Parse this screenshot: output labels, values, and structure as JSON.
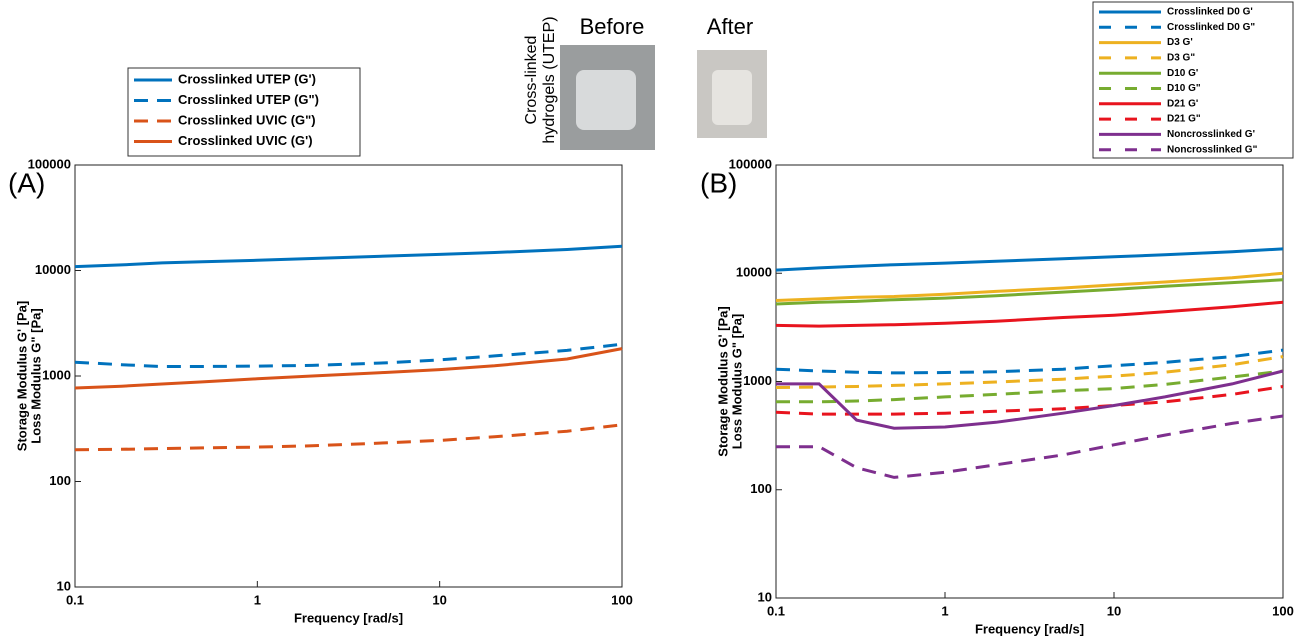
{
  "inset": {
    "label": [
      "Cross-linked",
      "hydrogels (UTEP)"
    ],
    "before": "Before",
    "after": "After"
  },
  "chart_data": [
    {
      "type": "line",
      "panel_label": "(A)",
      "xlabel": "Frequency [rad/s]",
      "ylabel": [
        "Storage Modulus G' [Pa]",
        "Loss Modulus G\" [Pa]"
      ],
      "log_x": true,
      "log_y": true,
      "x": [
        0.1,
        0.18,
        0.3,
        0.5,
        1,
        2,
        5,
        10,
        20,
        50,
        100
      ],
      "xlim": [
        0.1,
        100
      ],
      "xticks": [
        0.1,
        1,
        10,
        100
      ],
      "ylim": [
        10,
        100000
      ],
      "yticks": [
        10,
        100,
        1000,
        10000,
        100000
      ],
      "series": [
        {
          "name": "Crosslinked UTEP (G')",
          "color": "#0072bd",
          "dashed": false,
          "values": [
            10900,
            11300,
            11800,
            12100,
            12500,
            13000,
            13700,
            14200,
            14800,
            15800,
            17000
          ]
        },
        {
          "name": "Crosslinked UTEP (G\")",
          "color": "#0072bd",
          "dashed": true,
          "values": [
            1350,
            1280,
            1230,
            1230,
            1240,
            1260,
            1330,
            1420,
            1550,
            1750,
            2000
          ]
        },
        {
          "name": "Crosslinked UVIC (G\")",
          "color": "#d95319",
          "dashed": true,
          "values": [
            200,
            202,
            205,
            208,
            212,
            218,
            232,
            245,
            265,
            300,
            345
          ]
        },
        {
          "name": "Crosslinked UVIC (G')",
          "color": "#d95319",
          "dashed": false,
          "values": [
            770,
            800,
            840,
            880,
            940,
            1000,
            1080,
            1150,
            1250,
            1450,
            1820
          ]
        }
      ]
    },
    {
      "type": "line",
      "panel_label": "(B)",
      "xlabel": "Frequency [rad/s]",
      "ylabel": [
        "Storage Modulus G' [Pa]",
        "Loss Modulus G\" [Pa]"
      ],
      "log_x": true,
      "log_y": true,
      "x": [
        0.1,
        0.18,
        0.3,
        0.5,
        1,
        2,
        5,
        10,
        20,
        50,
        100
      ],
      "xlim": [
        0.1,
        100
      ],
      "xticks": [
        0.1,
        1,
        10,
        100
      ],
      "ylim": [
        10,
        100000
      ],
      "yticks": [
        10,
        100,
        1000,
        10000,
        100000
      ],
      "series": [
        {
          "name": "Crosslinked D0 G'",
          "color": "#0072bd",
          "dashed": false,
          "values": [
            10700,
            11200,
            11600,
            12000,
            12400,
            12900,
            13600,
            14200,
            14800,
            15800,
            16800
          ]
        },
        {
          "name": "Crosslinked D0 G\"",
          "color": "#0072bd",
          "dashed": true,
          "values": [
            1300,
            1250,
            1220,
            1200,
            1210,
            1230,
            1300,
            1400,
            1500,
            1700,
            1950
          ]
        },
        {
          "name": "D3 G'",
          "color": "#edb120",
          "dashed": false,
          "values": [
            5600,
            5800,
            6000,
            6100,
            6400,
            6800,
            7300,
            7800,
            8300,
            9100,
            10000
          ]
        },
        {
          "name": "D3 G\"",
          "color": "#edb120",
          "dashed": true,
          "values": [
            880,
            890,
            900,
            920,
            950,
            990,
            1050,
            1120,
            1220,
            1430,
            1700
          ]
        },
        {
          "name": "D10 G'",
          "color": "#77ac30",
          "dashed": false,
          "values": [
            5200,
            5400,
            5500,
            5700,
            5900,
            6200,
            6700,
            7100,
            7600,
            8200,
            8700
          ]
        },
        {
          "name": "D10 G\"",
          "color": "#77ac30",
          "dashed": true,
          "values": [
            650,
            650,
            660,
            680,
            720,
            760,
            820,
            860,
            940,
            1100,
            1250
          ]
        },
        {
          "name": "D21 G'",
          "color": "#e8141e",
          "dashed": false,
          "values": [
            3300,
            3250,
            3300,
            3350,
            3450,
            3600,
            3900,
            4100,
            4400,
            4900,
            5400
          ]
        },
        {
          "name": "D21 G\"",
          "color": "#e8141e",
          "dashed": true,
          "values": [
            520,
            500,
            500,
            500,
            510,
            530,
            560,
            600,
            650,
            760,
            900
          ]
        },
        {
          "name": "Noncrosslinked G'",
          "color": "#7e2f8e",
          "dashed": false,
          "values": [
            950,
            950,
            440,
            370,
            380,
            420,
            510,
            600,
            720,
            950,
            1250
          ]
        },
        {
          "name": "Noncrosslinked G\"",
          "color": "#7e2f8e",
          "dashed": true,
          "values": [
            250,
            250,
            160,
            130,
            145,
            170,
            210,
            260,
            320,
            410,
            480
          ]
        }
      ]
    }
  ]
}
